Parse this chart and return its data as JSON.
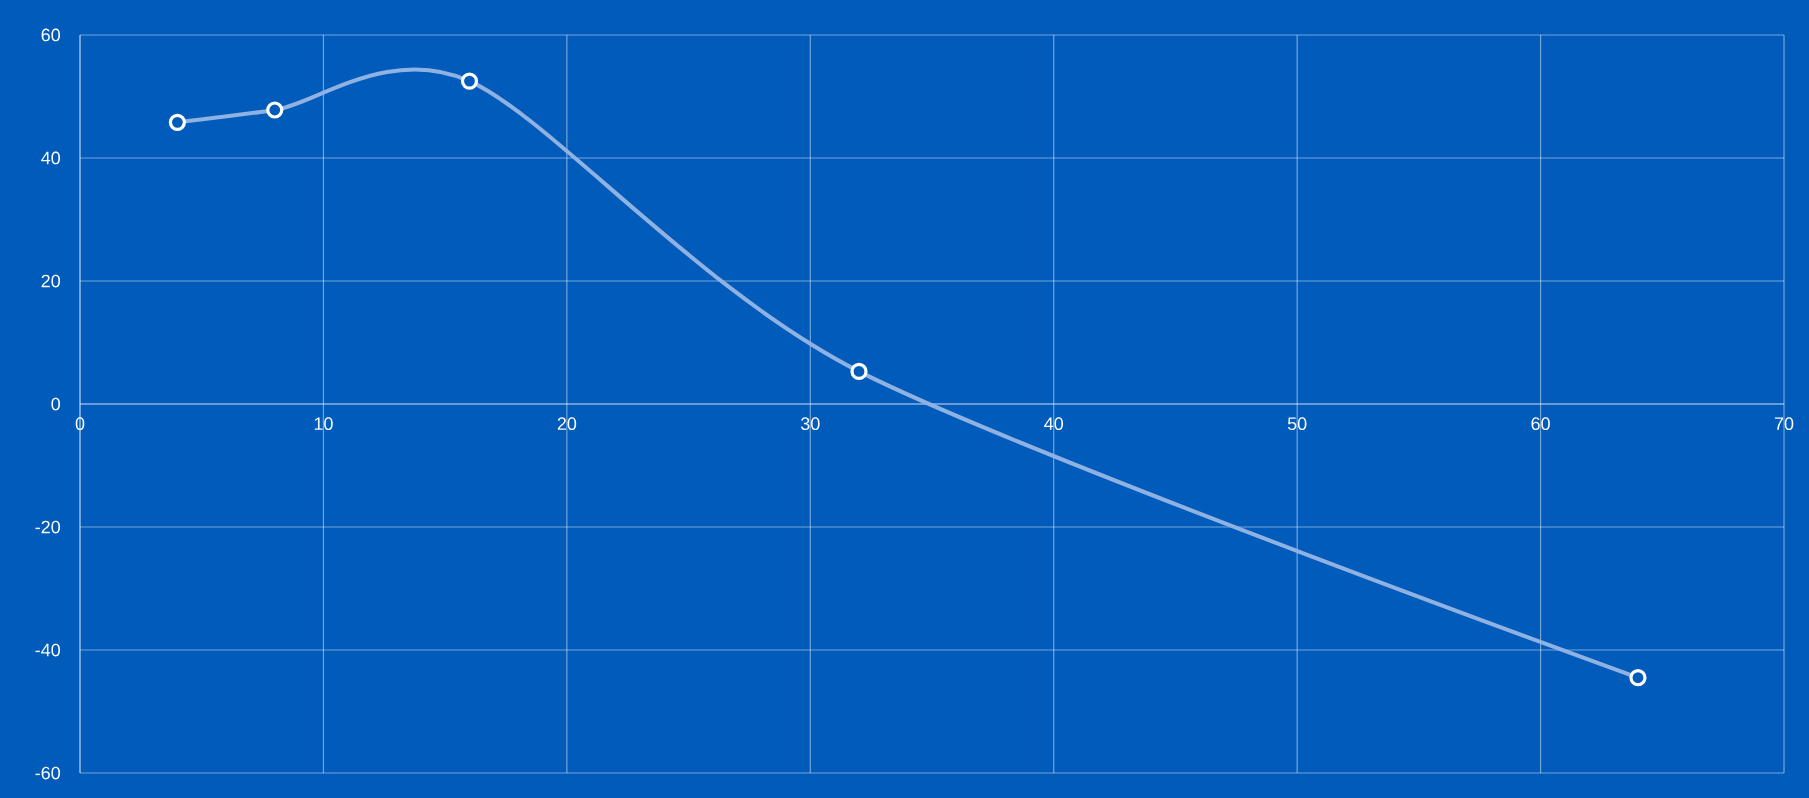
{
  "chart_data": {
    "type": "line",
    "x": [
      4,
      8,
      16,
      32,
      64
    ],
    "series": [
      {
        "color": "#8fb2e3",
        "values": [
          45.8,
          47.8,
          52.5,
          5.3,
          -44.5
        ]
      }
    ],
    "xlim": [
      0,
      70
    ],
    "xticks": [
      0,
      10,
      20,
      30,
      40,
      50,
      60,
      70
    ],
    "ylim": [
      -60,
      60
    ],
    "yticks": [
      -60,
      -40,
      -20,
      0,
      20,
      40,
      60
    ],
    "grid": true,
    "marker": "circle",
    "line_style": "solid"
  }
}
